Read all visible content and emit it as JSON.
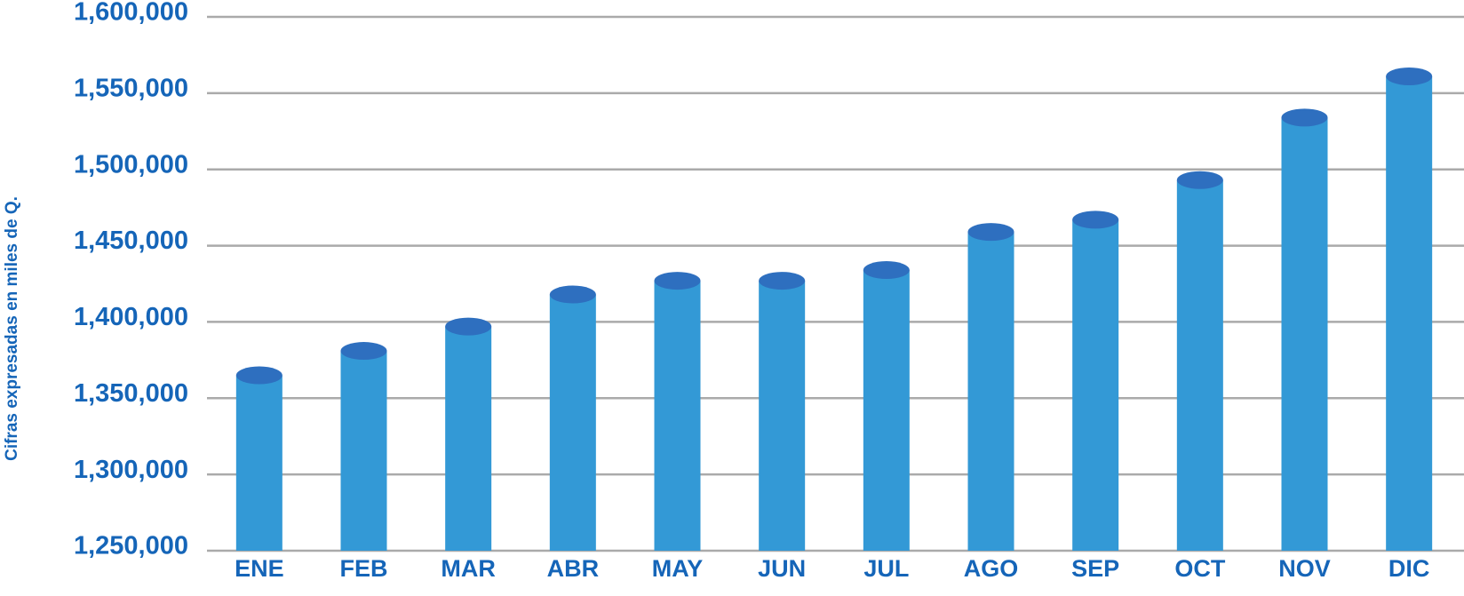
{
  "chart_data": {
    "type": "bar",
    "y_label": "Cifras expresadas en miles de Q.",
    "categories": [
      "ENE",
      "FEB",
      "MAR",
      "ABR",
      "MAY",
      "JUN",
      "JUL",
      "AGO",
      "SEP",
      "OCT",
      "NOV",
      "DIC"
    ],
    "values": [
      1365000,
      1381000,
      1397000,
      1418000,
      1427000,
      1427000,
      1434000,
      1459000,
      1467000,
      1493000,
      1534000,
      1561000
    ],
    "color": "#3399d6",
    "top_color": "#2e6fbf",
    "ylim": [
      1250000,
      1600000
    ],
    "yticks": [
      {
        "value": 1250000,
        "label": "1,250,000"
      },
      {
        "value": 1300000,
        "label": "1,300,000"
      },
      {
        "value": 1350000,
        "label": "1,350,000"
      },
      {
        "value": 1400000,
        "label": "1,400,000"
      },
      {
        "value": 1450000,
        "label": "1,450,000"
      },
      {
        "value": 1500000,
        "label": "1,500,000"
      },
      {
        "value": 1550000,
        "label": "1,550,000"
      },
      {
        "value": 1600000,
        "label": "1,600,000"
      }
    ],
    "grid": true
  }
}
